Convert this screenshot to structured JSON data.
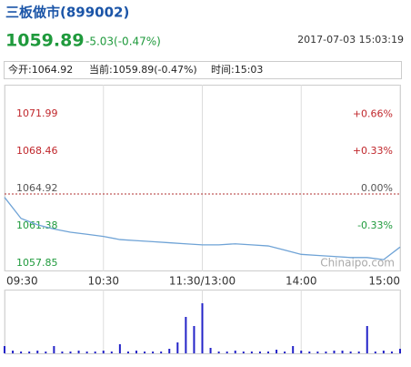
{
  "header": {
    "title": "三板做市(899002)",
    "price": "1059.89",
    "change": "-5.03(-0.47%)",
    "datetime": "2017-07-03 15:03:19"
  },
  "info": {
    "open": "今开:1064.92",
    "current": "当前:1059.89(-0.47%)",
    "time": "时间:15:03"
  },
  "chart_data": {
    "type": "line",
    "x": [
      0,
      10,
      20,
      30,
      40,
      50,
      60,
      70,
      80,
      90,
      100,
      110,
      120,
      130,
      140,
      150,
      160,
      170,
      180,
      190,
      200,
      210,
      220,
      230,
      240
    ],
    "series": [
      {
        "color": "#6fa3d6",
        "values": [
          1064.6,
          1062.6,
          1062.0,
          1061.6,
          1061.3,
          1061.1,
          1060.9,
          1060.6,
          1060.5,
          1060.4,
          1060.3,
          1060.2,
          1060.1,
          1060.1,
          1060.2,
          1060.1,
          1060.0,
          1059.6,
          1059.2,
          1059.1,
          1059.0,
          1058.9,
          1058.9,
          1058.7,
          1059.89
        ]
      }
    ],
    "xlim": [
      0,
      240
    ],
    "xticks": [
      {
        "value": 0,
        "label": "09:30"
      },
      {
        "value": 60,
        "label": "10:30"
      },
      {
        "value": 120,
        "label": "11:30/13:00"
      },
      {
        "value": 180,
        "label": "14:00"
      },
      {
        "value": 240,
        "label": "15:00"
      }
    ],
    "ylim": [
      1057.59,
      1075.26
    ],
    "yticks": [
      1057.85,
      1061.38,
      1064.92,
      1068.46,
      1071.99
    ],
    "y2lim": [
      -0.688,
      0.971
    ],
    "y2ticks": [
      {
        "value": -0.33,
        "label": "-0.33%"
      },
      {
        "value": 0,
        "label": "0.00%"
      },
      {
        "value": 0.33,
        "label": "+0.33%"
      },
      {
        "value": 0.66,
        "label": "+0.66%"
      }
    ],
    "baseline": 1064.92,
    "up_color": "#c0262b",
    "down_color": "#1f9a3c",
    "flat_color": "#555555",
    "watermark": "Chinaipo.com",
    "volume": {
      "color": "#2323c8",
      "ylim": [
        0,
        70
      ],
      "x": [
        0,
        5,
        10,
        15,
        20,
        25,
        30,
        35,
        40,
        45,
        50,
        55,
        60,
        65,
        70,
        75,
        80,
        85,
        90,
        95,
        100,
        105,
        110,
        115,
        120,
        125,
        130,
        135,
        140,
        145,
        150,
        155,
        160,
        165,
        170,
        175,
        180,
        185,
        190,
        195,
        200,
        205,
        210,
        215,
        220,
        225,
        230,
        235,
        240
      ],
      "values": [
        8,
        3,
        2,
        2,
        3,
        2,
        8,
        2,
        2,
        3,
        2,
        2,
        3,
        2,
        10,
        2,
        3,
        2,
        2,
        2,
        5,
        12,
        40,
        30,
        55,
        6,
        2,
        2,
        3,
        2,
        2,
        2,
        2,
        4,
        2,
        8,
        3,
        2,
        2,
        2,
        3,
        3,
        2,
        2,
        30,
        2,
        3,
        2,
        5
      ]
    }
  }
}
